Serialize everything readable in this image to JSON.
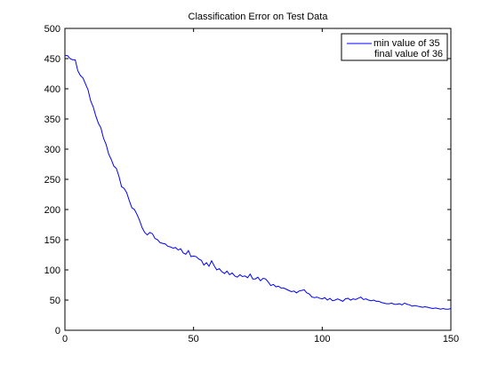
{
  "chart_data": {
    "type": "line",
    "title": "Classification Error on Test Data",
    "xlabel": "",
    "ylabel": "",
    "xlim": [
      0,
      150
    ],
    "ylim": [
      0,
      500
    ],
    "xticks": [
      0,
      50,
      100,
      150
    ],
    "yticks": [
      0,
      50,
      100,
      150,
      200,
      250,
      300,
      350,
      400,
      450,
      500
    ],
    "grid": false,
    "legend": {
      "placement": "top-right",
      "entries": [
        "min value of 35",
        "final value of 36"
      ]
    },
    "series": [
      {
        "color": "#0000ff",
        "x": [
          0,
          1,
          2,
          3,
          4,
          5,
          6,
          7,
          8,
          9,
          10,
          11,
          12,
          13,
          14,
          15,
          16,
          17,
          18,
          19,
          20,
          21,
          22,
          23,
          24,
          25,
          26,
          27,
          28,
          29,
          30,
          31,
          32,
          33,
          34,
          35,
          36,
          37,
          38,
          39,
          40,
          41,
          42,
          43,
          44,
          45,
          46,
          47,
          48,
          49,
          50,
          51,
          52,
          53,
          54,
          55,
          56,
          57,
          58,
          59,
          60,
          61,
          62,
          63,
          64,
          65,
          66,
          67,
          68,
          69,
          70,
          71,
          72,
          73,
          74,
          75,
          76,
          77,
          78,
          79,
          80,
          81,
          82,
          83,
          84,
          85,
          86,
          87,
          88,
          89,
          90,
          91,
          92,
          93,
          94,
          95,
          96,
          97,
          98,
          99,
          100,
          101,
          102,
          103,
          104,
          105,
          106,
          107,
          108,
          109,
          110,
          111,
          112,
          113,
          114,
          115,
          116,
          117,
          118,
          119,
          120,
          121,
          122,
          123,
          124,
          125,
          126,
          127,
          128,
          129,
          130,
          131,
          132,
          133,
          134,
          135,
          136,
          137,
          138,
          139,
          140,
          141,
          142,
          143,
          144,
          145,
          146,
          147,
          148,
          149,
          150
        ],
        "y": [
          455,
          455,
          450,
          448,
          448,
          430,
          422,
          418,
          408,
          398,
          380,
          370,
          355,
          343,
          335,
          318,
          308,
          292,
          283,
          272,
          268,
          255,
          238,
          235,
          228,
          215,
          203,
          200,
          192,
          182,
          170,
          162,
          158,
          162,
          160,
          152,
          150,
          145,
          144,
          143,
          139,
          138,
          136,
          137,
          133,
          135,
          128,
          126,
          132,
          122,
          123,
          122,
          118,
          116,
          108,
          112,
          106,
          115,
          107,
          100,
          102,
          97,
          94,
          98,
          92,
          95,
          90,
          88,
          92,
          89,
          90,
          87,
          93,
          85,
          85,
          88,
          82,
          86,
          85,
          80,
          74,
          76,
          72,
          73,
          70,
          70,
          68,
          66,
          64,
          65,
          62,
          65,
          66,
          67,
          62,
          60,
          55,
          54,
          55,
          53,
          52,
          54,
          50,
          53,
          49,
          50,
          52,
          50,
          48,
          52,
          53,
          50,
          52,
          51,
          53,
          55,
          51,
          52,
          50,
          49,
          50,
          48,
          48,
          46,
          45,
          44,
          44,
          45,
          43,
          43,
          44,
          42,
          45,
          43,
          42,
          40,
          41,
          40,
          39,
          38,
          39,
          38,
          37,
          36,
          37,
          36,
          35,
          36,
          35,
          35,
          36
        ]
      }
    ]
  }
}
